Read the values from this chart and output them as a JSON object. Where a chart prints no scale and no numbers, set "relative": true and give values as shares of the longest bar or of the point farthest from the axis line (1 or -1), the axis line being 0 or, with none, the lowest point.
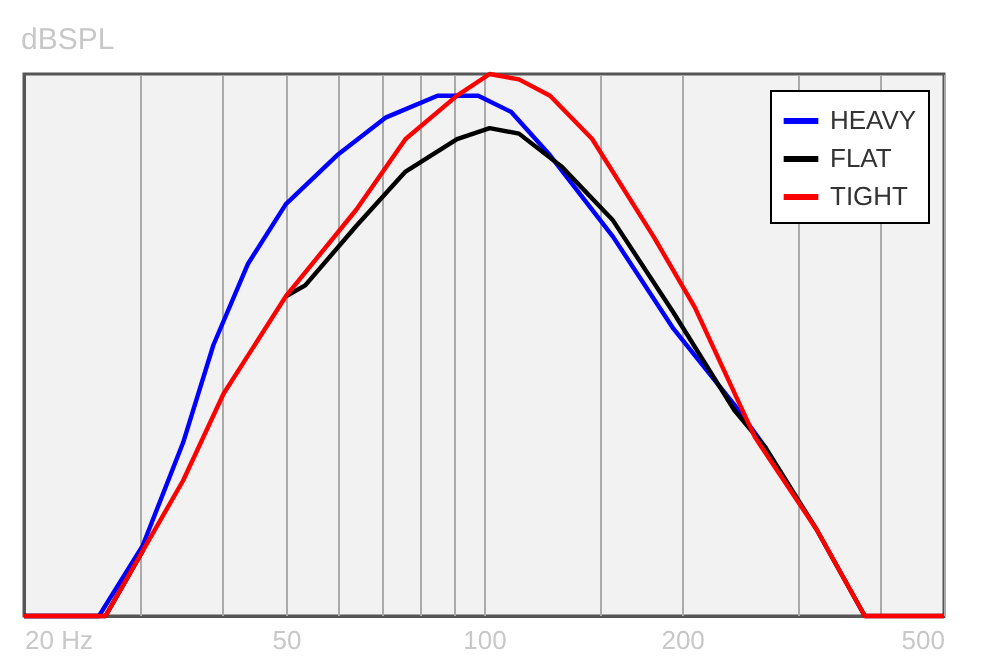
{
  "chart_data": {
    "type": "line",
    "ylabel": "dBSPL",
    "relative": true,
    "log": "x",
    "xlim": [
      20,
      500
    ],
    "xticks": [
      {
        "value": 20,
        "label": "20 Hz"
      },
      {
        "value": 30,
        "label": null
      },
      {
        "value": 40,
        "label": null
      },
      50,
      {
        "value": 60,
        "label": null
      },
      {
        "value": 70,
        "label": null
      },
      {
        "value": 80,
        "label": null
      },
      {
        "value": 90,
        "label": null
      },
      100,
      {
        "value": 150,
        "label": null
      },
      200,
      {
        "value": 300,
        "label": null
      },
      {
        "value": 400,
        "label": null
      },
      500
    ],
    "grid": "x",
    "legend": "top right",
    "line_style": "solid",
    "marker": "none",
    "series": [
      {
        "name": "HEAVY",
        "color": "#0000ff",
        "x": [
          20,
          26,
          30.3,
          34.9,
          38.8,
          43.8,
          50,
          59.8,
          71,
          85,
          98,
          110,
          126,
          157,
          194,
          240,
          268
        ],
        "values": [
          0,
          0,
          0.13,
          0.32,
          0.5,
          0.65,
          0.76,
          0.85,
          0.92,
          0.96,
          0.96,
          0.93,
          0.85,
          0.7,
          0.53,
          0.39,
          0.31
        ]
      },
      {
        "name": "FLAT",
        "color": "#000000",
        "x": [
          20,
          26.6,
          30.3,
          34.9,
          40.2,
          50,
          53.5,
          64,
          76,
          91,
          102,
          113,
          131,
          157,
          194,
          240,
          268,
          320,
          379,
          500
        ],
        "values": [
          0,
          0,
          0.12,
          null,
          null,
          0.59,
          0.61,
          0.72,
          0.82,
          0.88,
          0.9,
          0.89,
          0.83,
          0.73,
          0.56,
          0.38,
          0.31,
          0.16,
          0,
          0
        ]
      },
      {
        "name": "TIGHT",
        "color": "#ff0000",
        "x": [
          20,
          26.6,
          30.3,
          34.9,
          40.2,
          50,
          64,
          76,
          91,
          102,
          113,
          126,
          146,
          181,
          209,
          258,
          320,
          379,
          500
        ],
        "values": [
          0,
          0,
          0.12,
          0.25,
          0.41,
          0.59,
          0.75,
          0.88,
          0.96,
          1.0,
          0.99,
          0.96,
          0.88,
          0.7,
          0.57,
          0.33,
          0.16,
          0,
          0
        ]
      }
    ]
  }
}
